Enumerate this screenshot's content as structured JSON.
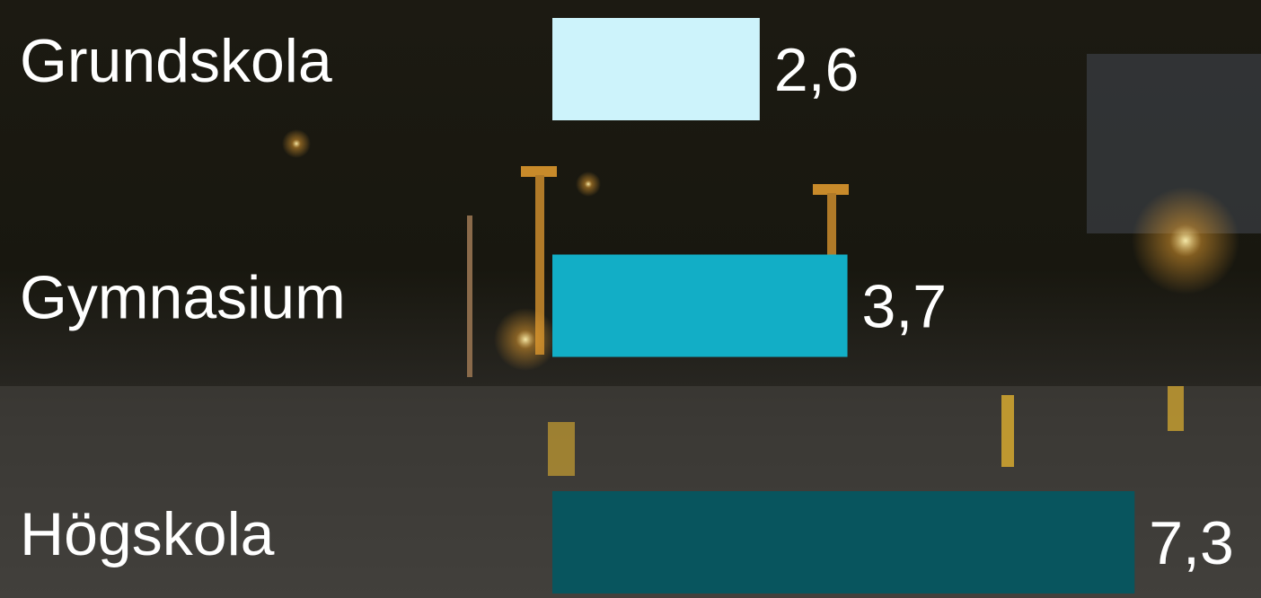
{
  "chart_data": {
    "type": "bar",
    "orientation": "horizontal",
    "categories": [
      "Grundskola",
      "Gymnasium",
      "Högskola"
    ],
    "values": [
      2.6,
      3.7,
      7.3
    ],
    "value_labels": [
      "2,6",
      "3,7",
      "7,3"
    ],
    "colors": [
      "#cdf3fb",
      "#12aec6",
      "#08555e"
    ]
  }
}
